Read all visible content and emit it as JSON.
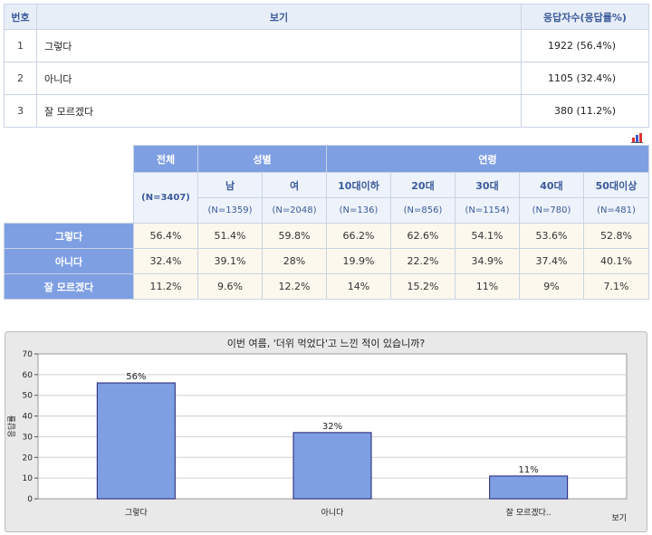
{
  "question_table": {
    "headers": [
      "번호",
      "보기",
      "응답자수(응답률%)"
    ],
    "rows": [
      {
        "no": "1",
        "option": "그렇다",
        "result": "1922 (56.4%)"
      },
      {
        "no": "2",
        "option": "아니다",
        "result": "1105 (32.4%)"
      },
      {
        "no": "3",
        "option": "잘 모르겠다",
        "result": "380 (11.2%)"
      }
    ]
  },
  "cross_table": {
    "total_label": "전체",
    "total_n": "(N=3407)",
    "gender_label": "성별",
    "age_label": "연령",
    "columns": [
      {
        "label": "남",
        "n": "(N=1359)"
      },
      {
        "label": "여",
        "n": "(N=2048)"
      },
      {
        "label": "10대이하",
        "n": "(N=136)"
      },
      {
        "label": "20대",
        "n": "(N=856)"
      },
      {
        "label": "30대",
        "n": "(N=1154)"
      },
      {
        "label": "40대",
        "n": "(N=780)"
      },
      {
        "label": "50대이상",
        "n": "(N=481)"
      }
    ],
    "rows": [
      {
        "label": "그렇다",
        "values": [
          "56.4%",
          "51.4%",
          "59.8%",
          "66.2%",
          "62.6%",
          "54.1%",
          "53.6%",
          "52.8%"
        ]
      },
      {
        "label": "아니다",
        "values": [
          "32.4%",
          "39.1%",
          "28%",
          "19.9%",
          "22.2%",
          "34.9%",
          "37.4%",
          "40.1%"
        ]
      },
      {
        "label": "잘 모르겠다",
        "values": [
          "11.2%",
          "9.6%",
          "12.2%",
          "14%",
          "15.2%",
          "11%",
          "9%",
          "7.1%"
        ]
      }
    ]
  },
  "colors": {
    "header_blue": "#7f9fe3",
    "bar_fill": "#7f9fe3",
    "bar_stroke": "#1f1f6f"
  },
  "chart_data": {
    "type": "bar",
    "title": "이번 여름, '더위 먹었다'고 느낀 적이 있습니까?",
    "categories": [
      "그렇다",
      "아니다",
      "잘 모르겠다.."
    ],
    "values": [
      56,
      32,
      11
    ],
    "data_labels": [
      "56%",
      "32%",
      "11%"
    ],
    "ylabel": "응답률",
    "xlabel": "보기",
    "ylim": [
      0,
      70
    ],
    "yticks": [
      "0",
      "10",
      "20",
      "30",
      "40",
      "50",
      "60",
      "70"
    ],
    "grid": true
  }
}
